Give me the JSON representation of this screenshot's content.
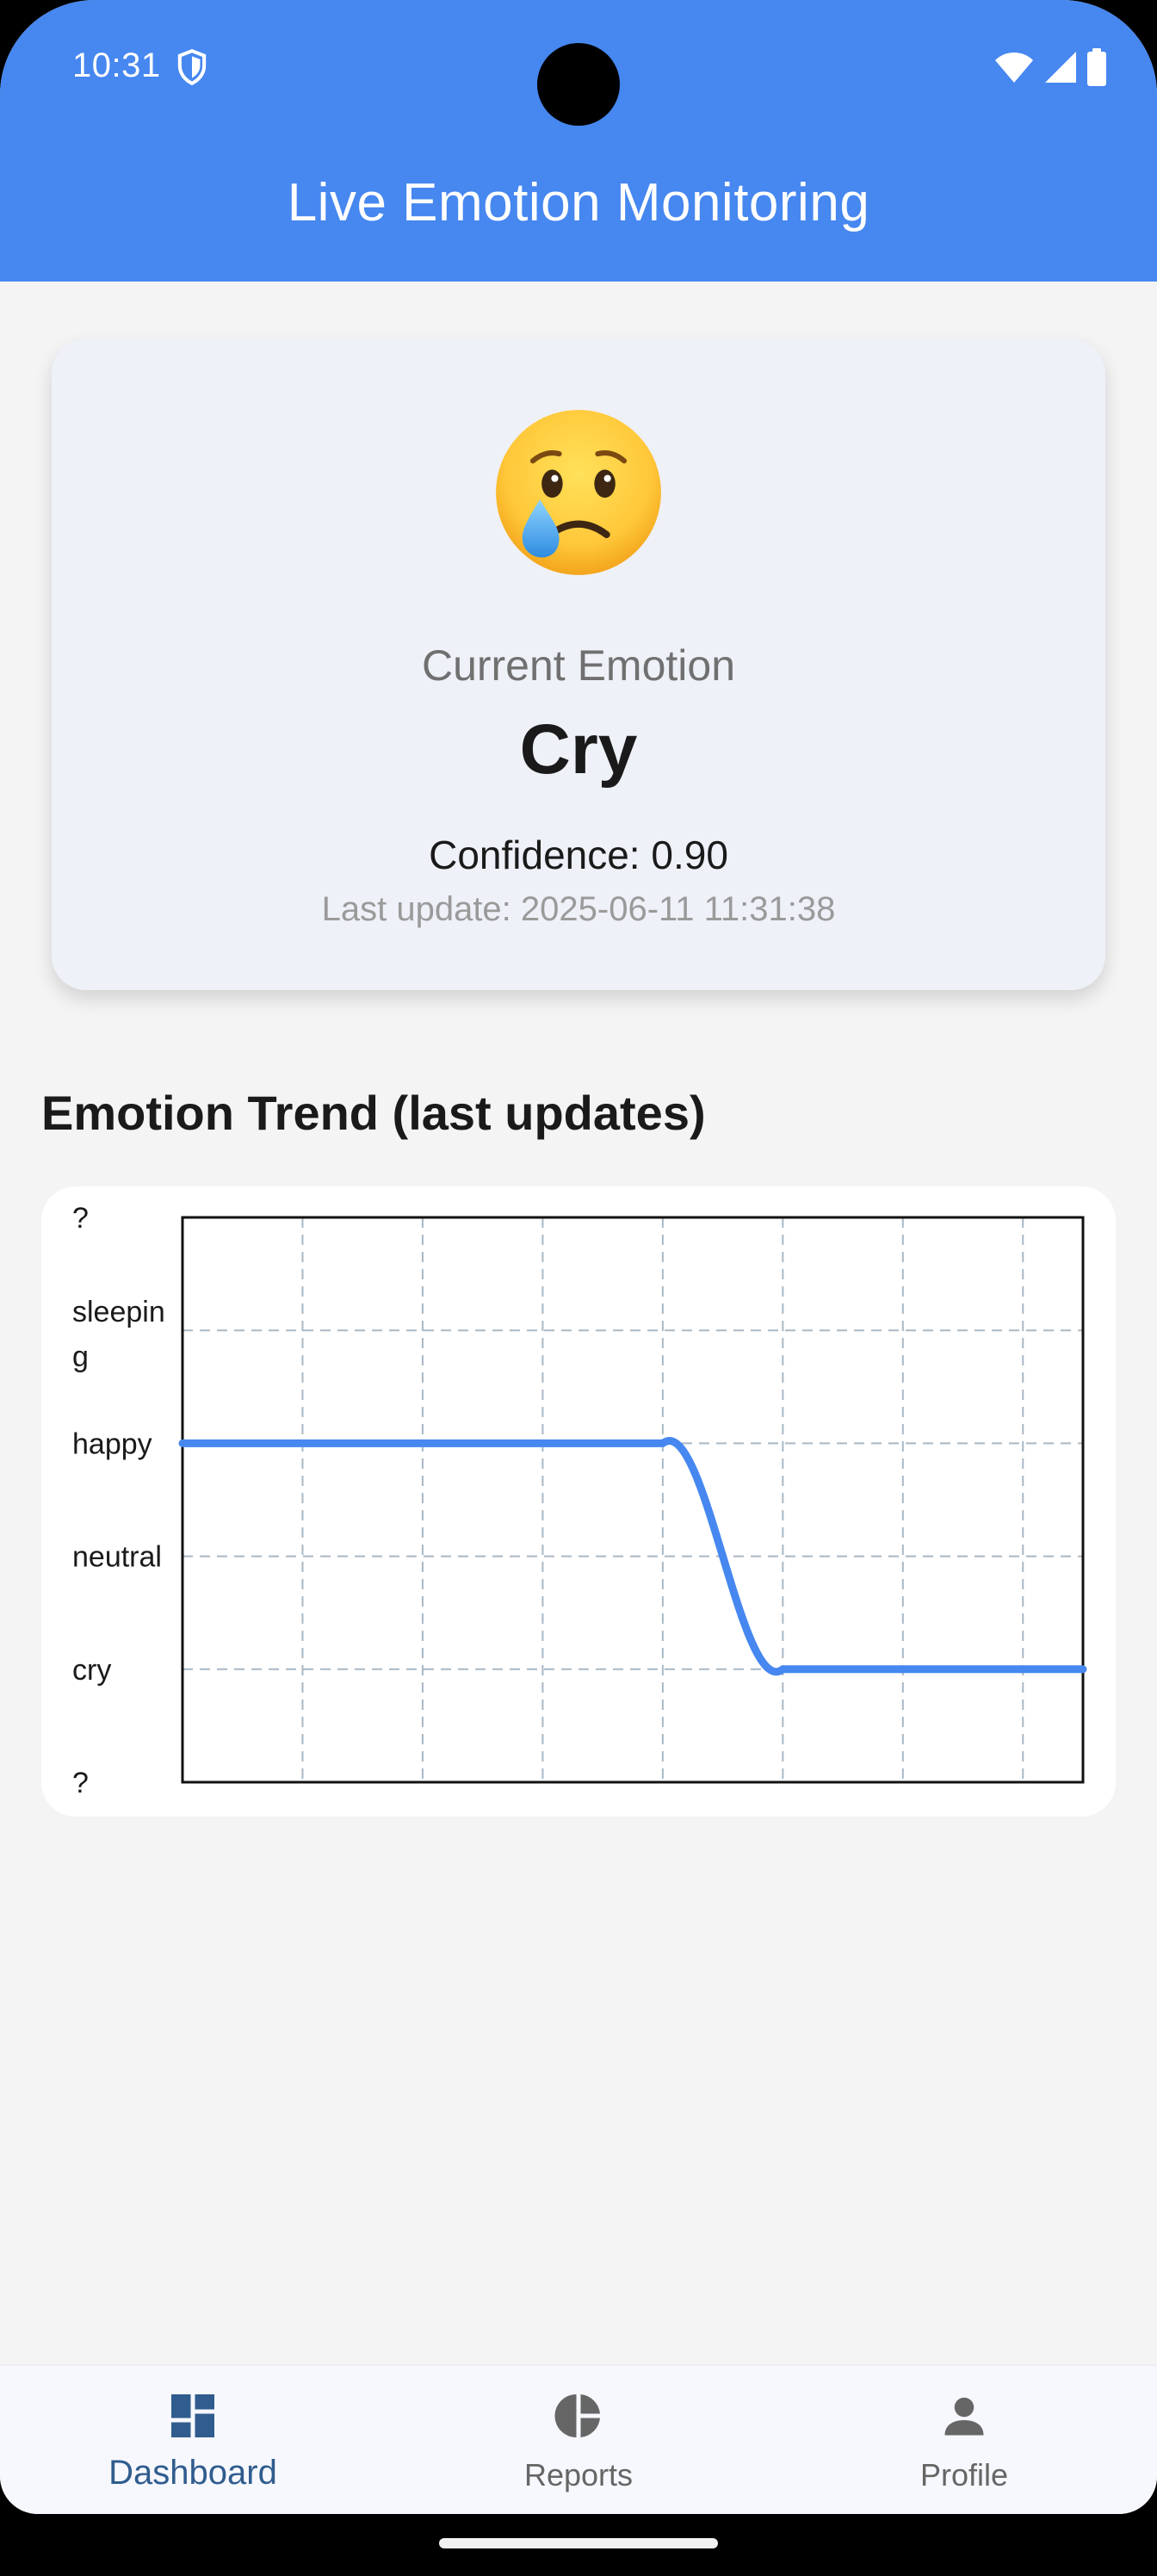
{
  "status_bar": {
    "time": "10:31",
    "icons": [
      "shield-icon",
      "wifi-icon",
      "signal-icon",
      "battery-icon"
    ]
  },
  "app_bar": {
    "title": "Live Emotion Monitoring",
    "color": "#4687f0"
  },
  "emotion_card": {
    "emoji_icon": "crying-face-icon",
    "current_label": "Current Emotion",
    "current_value": "Cry",
    "confidence": "Confidence: 0.90",
    "last_update": "Last update: 2025-06-11 11:31:38"
  },
  "trend": {
    "title": "Emotion Trend (last updates)"
  },
  "chart_data": {
    "type": "line",
    "y_categories": [
      "?",
      "cry",
      "neutral",
      "happy",
      "sleeping",
      "?"
    ],
    "y_tick_labels": [
      "?",
      "sleeping",
      "happy",
      "neutral",
      "cry",
      "?"
    ],
    "x": [
      0,
      1,
      2,
      3,
      4,
      5,
      6,
      7
    ],
    "series": [
      {
        "values": [
          "happy",
          "happy",
          "happy",
          "happy",
          "happy",
          "cry",
          "cry",
          "cry"
        ],
        "color": "#4687f0"
      }
    ],
    "grid": true,
    "curved": true
  },
  "bottom_nav": {
    "items": [
      {
        "label": "Dashboard",
        "icon": "dashboard-icon",
        "active": true
      },
      {
        "label": "Reports",
        "icon": "pie-chart-icon",
        "active": false
      },
      {
        "label": "Profile",
        "icon": "person-icon",
        "active": false
      }
    ]
  }
}
